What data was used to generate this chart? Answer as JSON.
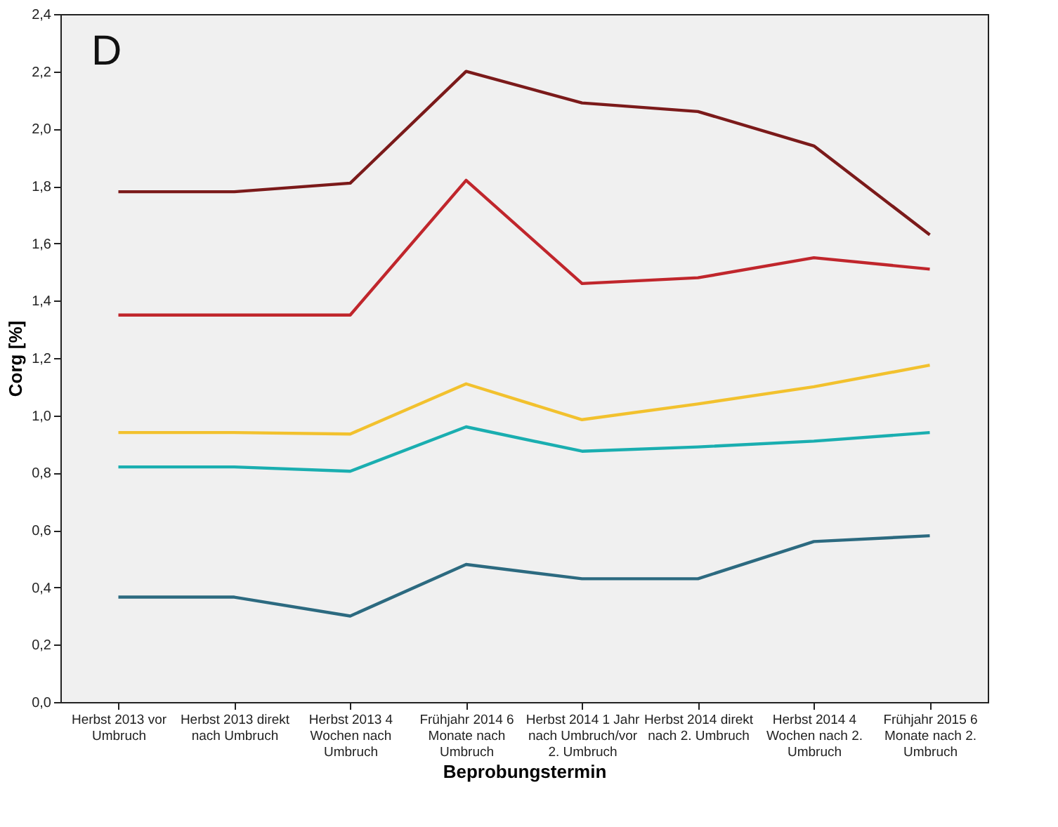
{
  "chart_data": {
    "type": "line",
    "xlabel": "Beprobungstermin",
    "ylabel": "Corg [%]",
    "annotations": [
      "D"
    ],
    "categories": [
      "Herbst 2013 vor Umbruch",
      "Herbst 2013 direkt nach Umbruch",
      "Herbst 2013 4 Wochen nach Umbruch",
      "Frühjahr 2014 6 Monate nach Umbruch",
      "Herbst 2014 1 Jahr nach Umbruch/vor 2. Umbruch",
      "Herbst 2014 direkt nach 2. Umbruch",
      "Herbst 2014 4 Wochen nach 2. Umbruch",
      "Frühjahr 2015 6 Monate nach 2. Umbruch"
    ],
    "series": [
      {
        "color": "#7b1a1a",
        "values": [
          1.78,
          1.78,
          1.81,
          2.2,
          2.09,
          2.06,
          1.94,
          1.63
        ]
      },
      {
        "color": "#c0262c",
        "values": [
          1.35,
          1.35,
          1.35,
          1.82,
          1.46,
          1.48,
          1.55,
          1.51
        ]
      },
      {
        "color": "#f2c12e",
        "values": [
          0.94,
          0.94,
          0.935,
          1.11,
          0.985,
          1.04,
          1.1,
          1.175
        ]
      },
      {
        "color": "#1aaeb0",
        "values": [
          0.82,
          0.82,
          0.805,
          0.96,
          0.875,
          0.89,
          0.91,
          0.94
        ]
      },
      {
        "color": "#2c6a80",
        "values": [
          0.366,
          0.366,
          0.3,
          0.48,
          0.43,
          0.43,
          0.56,
          0.58
        ]
      }
    ],
    "ylim": [
      0,
      2.4
    ],
    "yticks": [
      {
        "value": 0,
        "label": "0,0"
      },
      {
        "value": 0.2,
        "label": "0,2"
      },
      {
        "value": 0.4,
        "label": "0,4"
      },
      {
        "value": 0.6,
        "label": "0,6"
      },
      {
        "value": 0.8,
        "label": "0,8"
      },
      {
        "value": 1.0,
        "label": "1,0"
      },
      {
        "value": 1.2,
        "label": "1,2"
      },
      {
        "value": 1.4,
        "label": "1,4"
      },
      {
        "value": 1.6,
        "label": "1,6"
      },
      {
        "value": 1.8,
        "label": "1,8"
      },
      {
        "value": 2.0,
        "label": "2,0"
      },
      {
        "value": 2.2,
        "label": "2,2"
      },
      {
        "value": 2.4,
        "label": "2,4"
      }
    ],
    "grid": false,
    "legend": false,
    "marker": "none",
    "line_style": "solid"
  }
}
